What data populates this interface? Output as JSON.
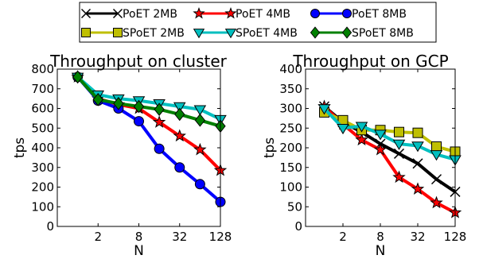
{
  "figure": {
    "legend": {
      "placement": "top-center",
      "entries": [
        {
          "label": "PoET 2MB",
          "series": "poet2"
        },
        {
          "label": "PoET 4MB",
          "series": "poet4"
        },
        {
          "label": "PoET 8MB",
          "series": "poet8"
        },
        {
          "label": "SPoET 2MB",
          "series": "spoet2"
        },
        {
          "label": "SPoET 4MB",
          "series": "spoet4"
        },
        {
          "label": "SPoET 8MB",
          "series": "spoet8"
        }
      ]
    }
  },
  "styles": {
    "poet2": {
      "color": "#000000",
      "marker": "x"
    },
    "poet4": {
      "color": "#ff0000",
      "marker": "star"
    },
    "poet8": {
      "color": "#0000ff",
      "marker": "circle"
    },
    "spoet2": {
      "color": "#bfbf00",
      "marker": "square"
    },
    "spoet4": {
      "color": "#00bfbf",
      "marker": "triangle-down"
    },
    "spoet8": {
      "color": "#008000",
      "marker": "diamond"
    }
  },
  "chart_data": [
    {
      "type": "line",
      "title": "Throughput on cluster",
      "xlabel": "N",
      "ylabel": "tps",
      "x_scale": "log2",
      "xticks": [
        2,
        8,
        32,
        128
      ],
      "xtick_labels": [
        "2",
        "8",
        "32",
        "128"
      ],
      "xlim": [
        0.5,
        128
      ],
      "ylim": [
        0,
        800
      ],
      "yticks": [
        0,
        100,
        200,
        300,
        400,
        500,
        600,
        700,
        800
      ],
      "grid": false,
      "x": [
        1,
        2,
        4,
        8,
        16,
        32,
        64,
        128
      ],
      "series": [
        {
          "name": "PoET 2MB",
          "key": "poet2",
          "values": [
            null,
            null,
            null,
            null,
            null,
            null,
            null,
            null
          ]
        },
        {
          "name": "PoET 4MB",
          "key": "poet4",
          "values": [
            760,
            650,
            620,
            600,
            530,
            460,
            390,
            285
          ]
        },
        {
          "name": "PoET 8MB",
          "key": "poet8",
          "values": [
            760,
            640,
            600,
            535,
            395,
            300,
            215,
            125
          ]
        },
        {
          "name": "SPoET 2MB",
          "key": "spoet2",
          "values": [
            null,
            null,
            null,
            null,
            null,
            null,
            null,
            null
          ]
        },
        {
          "name": "SPoET 4MB",
          "key": "spoet4",
          "values": [
            760,
            670,
            650,
            640,
            625,
            610,
            595,
            545
          ]
        },
        {
          "name": "SPoET 8MB",
          "key": "spoet8",
          "values": [
            760,
            645,
            625,
            610,
            595,
            570,
            540,
            510
          ]
        }
      ]
    },
    {
      "type": "line",
      "title": "Throughput on GCP",
      "xlabel": "N",
      "ylabel": "tps",
      "x_scale": "log2",
      "xticks": [
        2,
        8,
        32,
        128
      ],
      "xtick_labels": [
        "2",
        "8",
        "32",
        "128"
      ],
      "xlim": [
        0.5,
        128
      ],
      "ylim": [
        0,
        400
      ],
      "yticks": [
        0,
        50,
        100,
        150,
        200,
        250,
        300,
        350,
        400
      ],
      "grid": false,
      "x": [
        1,
        2,
        4,
        8,
        16,
        32,
        64,
        128
      ],
      "series": [
        {
          "name": "PoET 2MB",
          "key": "poet2",
          "values": [
            305,
            265,
            240,
            210,
            185,
            160,
            120,
            88
          ]
        },
        {
          "name": "PoET 4MB",
          "key": "poet4",
          "values": [
            305,
            260,
            220,
            195,
            125,
            95,
            60,
            35
          ]
        },
        {
          "name": "PoET 8MB",
          "key": "poet8",
          "values": [
            null,
            null,
            null,
            null,
            null,
            null,
            null,
            null
          ]
        },
        {
          "name": "SPoET 2MB",
          "key": "spoet2",
          "values": [
            290,
            270,
            245,
            245,
            240,
            238,
            203,
            190
          ]
        },
        {
          "name": "SPoET 4MB",
          "key": "spoet4",
          "values": [
            300,
            250,
            255,
            235,
            210,
            205,
            183,
            170
          ]
        },
        {
          "name": "SPoET 8MB",
          "key": "spoet8",
          "values": [
            null,
            null,
            null,
            null,
            null,
            null,
            null,
            null
          ]
        }
      ]
    }
  ]
}
